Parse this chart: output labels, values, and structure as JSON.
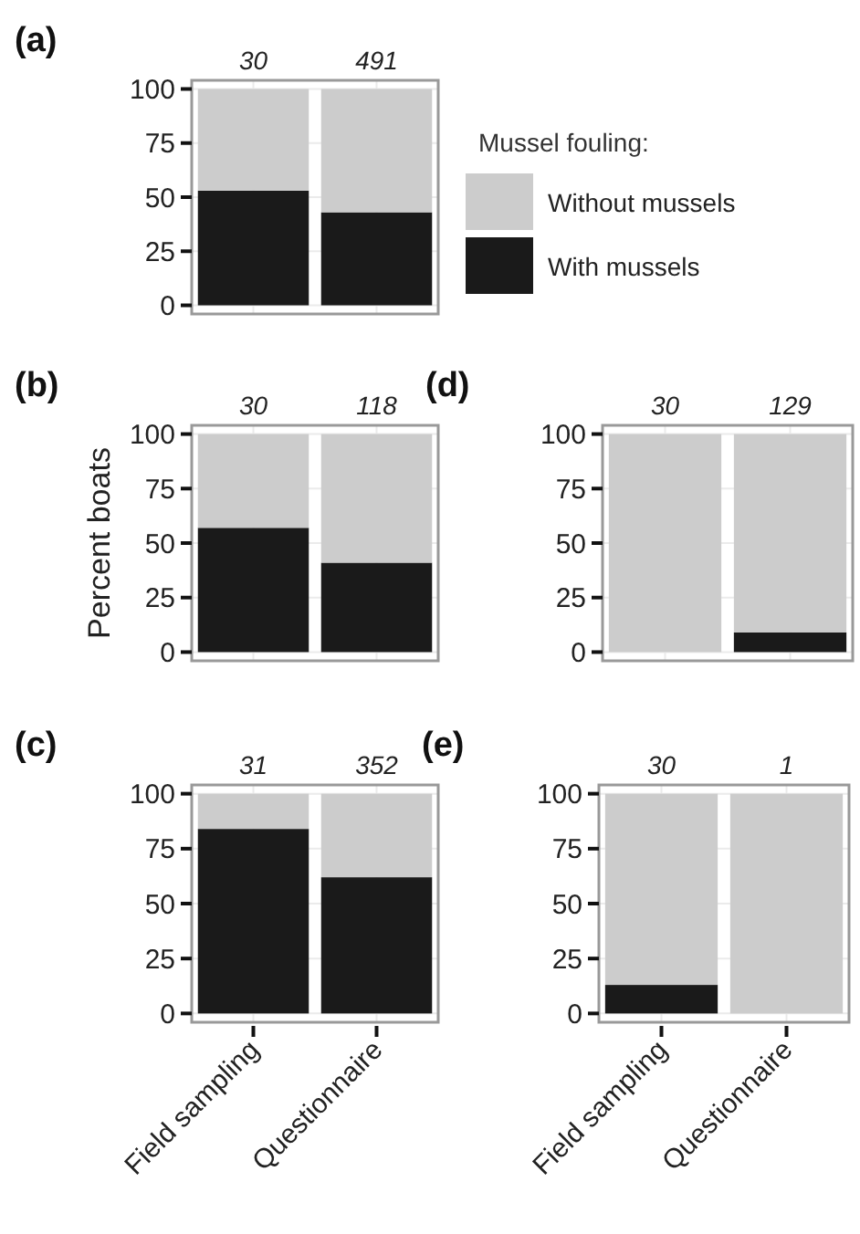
{
  "chart_data": [
    {
      "type": "bar",
      "title": "(a)",
      "categories": [
        null,
        null
      ],
      "stacked": true,
      "ylim": [
        -4,
        104
      ],
      "yticks": [
        0,
        25,
        50,
        75,
        100
      ],
      "grid": true,
      "tick_labels": "y",
      "legend": "right",
      "legend_title": "Mussel fouling:",
      "annotations": [
        "30",
        "491"
      ],
      "series": [
        {
          "name": "With mussels",
          "color": "#1a1a1a",
          "values": [
            53,
            43
          ]
        },
        {
          "name": "Without mussels",
          "color": "#cccccc",
          "values": [
            47,
            57
          ]
        }
      ]
    },
    {
      "type": "bar",
      "title": "(b)",
      "ylabel": "Percent boats",
      "categories": [
        null,
        null
      ],
      "stacked": true,
      "ylim": [
        -4,
        104
      ],
      "yticks": [
        0,
        25,
        50,
        75,
        100
      ],
      "grid": true,
      "tick_labels": "y",
      "annotations": [
        "30",
        "118"
      ],
      "series": [
        {
          "color": "#1a1a1a",
          "values": [
            57,
            41
          ]
        },
        {
          "color": "#cccccc",
          "values": [
            43,
            59
          ]
        }
      ]
    },
    {
      "type": "bar",
      "title": "(d)",
      "categories": [
        null,
        null
      ],
      "stacked": true,
      "ylim": [
        -4,
        104
      ],
      "yticks": [
        0,
        25,
        50,
        75,
        100
      ],
      "grid": true,
      "tick_labels": "y",
      "annotations": [
        "30",
        "129"
      ],
      "series": [
        {
          "color": "#1a1a1a",
          "values": [
            0,
            9
          ]
        },
        {
          "color": "#cccccc",
          "values": [
            100,
            91
          ]
        }
      ]
    },
    {
      "type": "bar",
      "title": "(c)",
      "categories": [
        "Field sampling",
        "Questionnaire"
      ],
      "stacked": true,
      "ylim": [
        -4,
        104
      ],
      "yticks": [
        0,
        25,
        50,
        75,
        100
      ],
      "grid": true,
      "annotations": [
        "31",
        "352"
      ],
      "series": [
        {
          "color": "#1a1a1a",
          "values": [
            84,
            62
          ]
        },
        {
          "color": "#cccccc",
          "values": [
            16,
            38
          ]
        }
      ]
    },
    {
      "type": "bar",
      "title": "(e)",
      "categories": [
        "Field sampling",
        "Questionnaire"
      ],
      "stacked": true,
      "ylim": [
        -4,
        104
      ],
      "yticks": [
        0,
        25,
        50,
        75,
        100
      ],
      "grid": true,
      "annotations": [
        "30",
        "1"
      ],
      "series": [
        {
          "color": "#1a1a1a",
          "values": [
            13,
            0
          ]
        },
        {
          "color": "#cccccc",
          "values": [
            87,
            100
          ]
        }
      ]
    }
  ]
}
